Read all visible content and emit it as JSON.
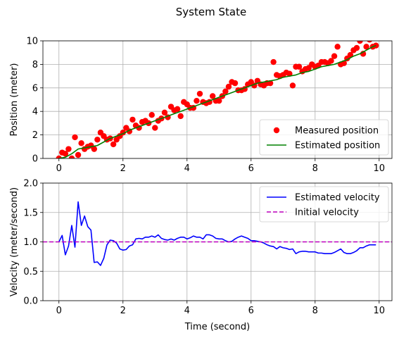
{
  "figure": {
    "title": "System State"
  },
  "chart_data": [
    {
      "type": "scatter+line",
      "xlabel": "",
      "ylabel": "Position (meter)",
      "xlim": [
        -0.5,
        10.4
      ],
      "ylim": [
        0,
        10
      ],
      "xticks": [
        0,
        2,
        4,
        6,
        8,
        10
      ],
      "yticks": [
        0,
        2,
        4,
        6,
        8,
        10
      ],
      "grid": true,
      "legend_position": "lower-right",
      "series": [
        {
          "name": "Measured position",
          "style": "markers",
          "color": "#ff0000",
          "x": [
            0.0,
            0.1,
            0.2,
            0.3,
            0.4,
            0.5,
            0.6,
            0.7,
            0.8,
            0.9,
            1.0,
            1.1,
            1.2,
            1.3,
            1.4,
            1.5,
            1.6,
            1.7,
            1.8,
            1.9,
            2.0,
            2.1,
            2.2,
            2.3,
            2.4,
            2.5,
            2.6,
            2.7,
            2.8,
            2.9,
            3.0,
            3.1,
            3.2,
            3.3,
            3.4,
            3.5,
            3.6,
            3.7,
            3.8,
            3.9,
            4.0,
            4.1,
            4.2,
            4.3,
            4.4,
            4.5,
            4.6,
            4.7,
            4.8,
            4.9,
            5.0,
            5.1,
            5.2,
            5.3,
            5.4,
            5.5,
            5.6,
            5.7,
            5.8,
            5.9,
            6.0,
            6.1,
            6.2,
            6.3,
            6.4,
            6.5,
            6.6,
            6.7,
            6.8,
            6.9,
            7.0,
            7.1,
            7.2,
            7.3,
            7.4,
            7.5,
            7.6,
            7.7,
            7.8,
            7.9,
            8.0,
            8.1,
            8.2,
            8.3,
            8.4,
            8.5,
            8.6,
            8.7,
            8.8,
            8.9,
            9.0,
            9.1,
            9.2,
            9.3,
            9.4,
            9.5,
            9.6,
            9.7,
            9.8,
            9.9
          ],
          "y": [
            0.0,
            0.5,
            0.4,
            0.8,
            0.0,
            1.8,
            0.3,
            1.3,
            0.8,
            1.0,
            1.1,
            0.8,
            1.6,
            2.2,
            1.9,
            1.6,
            1.7,
            1.2,
            1.6,
            1.9,
            2.2,
            2.6,
            2.3,
            3.3,
            2.8,
            2.6,
            3.1,
            3.2,
            3.0,
            3.7,
            2.6,
            3.2,
            3.4,
            3.9,
            3.5,
            4.4,
            4.1,
            4.2,
            3.6,
            4.8,
            4.6,
            4.3,
            4.3,
            4.9,
            5.5,
            4.8,
            4.7,
            4.8,
            5.3,
            4.9,
            4.9,
            5.3,
            5.7,
            6.1,
            6.5,
            6.4,
            5.8,
            5.8,
            5.9,
            6.3,
            6.5,
            6.2,
            6.6,
            6.3,
            6.2,
            6.4,
            6.4,
            8.2,
            7.1,
            7.0,
            7.1,
            7.3,
            7.2,
            6.2,
            7.8,
            7.8,
            7.4,
            7.6,
            7.7,
            8.0,
            7.8,
            7.9,
            8.2,
            8.2,
            8.1,
            8.3,
            8.7,
            9.5,
            8.0,
            8.1,
            8.5,
            8.8,
            9.2,
            9.4,
            10.0,
            8.9,
            9.5,
            10.1,
            9.5,
            9.6
          ]
        },
        {
          "name": "Estimated position",
          "style": "line",
          "color": "#008000",
          "x": [
            0,
            0.2,
            0.4,
            0.6,
            0.8,
            1.0,
            1.2,
            1.4,
            1.6,
            1.8,
            2.0,
            2.2,
            2.4,
            2.6,
            2.8,
            3.0,
            3.2,
            3.4,
            3.6,
            3.8,
            4.0,
            4.2,
            4.4,
            4.6,
            4.8,
            5.0,
            5.2,
            5.4,
            5.6,
            5.8,
            6.0,
            6.2,
            6.4,
            6.6,
            6.8,
            7.0,
            7.2,
            7.4,
            7.6,
            7.8,
            8.0,
            8.2,
            8.4,
            8.6,
            8.8,
            9.0,
            9.2,
            9.4,
            9.6,
            9.8,
            9.9
          ],
          "y": [
            0.0,
            0.1,
            0.4,
            0.8,
            0.9,
            1.0,
            1.1,
            1.4,
            1.7,
            1.9,
            2.1,
            2.4,
            2.6,
            2.8,
            3.0,
            3.2,
            3.4,
            3.6,
            3.8,
            4.0,
            4.2,
            4.4,
            4.6,
            4.8,
            5.0,
            5.2,
            5.4,
            5.6,
            5.8,
            6.0,
            6.2,
            6.4,
            6.5,
            6.6,
            6.7,
            6.9,
            7.0,
            7.1,
            7.3,
            7.4,
            7.6,
            7.8,
            7.9,
            8.0,
            8.2,
            8.4,
            8.7,
            8.9,
            9.2,
            9.5,
            9.6
          ]
        }
      ]
    },
    {
      "type": "line",
      "xlabel": "Time (second)",
      "ylabel": "Velocity (meter/second)",
      "xlim": [
        -0.5,
        10.4
      ],
      "ylim": [
        0,
        2
      ],
      "xticks": [
        0,
        2,
        4,
        6,
        8,
        10
      ],
      "yticks": [
        0.0,
        0.5,
        1.0,
        1.5,
        2.0
      ],
      "grid": true,
      "legend_position": "upper-right",
      "series": [
        {
          "name": "Estimated velocity",
          "style": "line",
          "color": "#0000ff",
          "x": [
            0.0,
            0.1,
            0.2,
            0.3,
            0.4,
            0.5,
            0.6,
            0.7,
            0.8,
            0.9,
            1.0,
            1.1,
            1.2,
            1.3,
            1.4,
            1.5,
            1.6,
            1.7,
            1.8,
            1.9,
            2.0,
            2.1,
            2.2,
            2.3,
            2.4,
            2.5,
            2.6,
            2.7,
            2.8,
            2.9,
            3.0,
            3.1,
            3.2,
            3.3,
            3.4,
            3.5,
            3.6,
            3.7,
            3.8,
            3.9,
            4.0,
            4.1,
            4.2,
            4.3,
            4.4,
            4.5,
            4.6,
            4.7,
            4.8,
            4.9,
            5.0,
            5.1,
            5.2,
            5.3,
            5.4,
            5.5,
            5.6,
            5.7,
            5.8,
            5.9,
            6.0,
            6.1,
            6.2,
            6.3,
            6.4,
            6.5,
            6.6,
            6.7,
            6.8,
            6.9,
            7.0,
            7.1,
            7.2,
            7.3,
            7.4,
            7.5,
            7.6,
            7.7,
            7.8,
            7.9,
            8.0,
            8.1,
            8.2,
            8.3,
            8.4,
            8.5,
            8.6,
            8.7,
            8.8,
            8.9,
            9.0,
            9.1,
            9.2,
            9.3,
            9.4,
            9.5,
            9.6,
            9.7,
            9.8,
            9.9
          ],
          "y": [
            1.0,
            1.11,
            0.78,
            0.93,
            1.28,
            0.91,
            1.68,
            1.28,
            1.44,
            1.26,
            1.2,
            0.65,
            0.66,
            0.6,
            0.72,
            0.95,
            1.03,
            1.02,
            0.98,
            0.88,
            0.86,
            0.87,
            0.93,
            0.95,
            1.05,
            1.06,
            1.05,
            1.08,
            1.08,
            1.1,
            1.08,
            1.12,
            1.06,
            1.04,
            1.03,
            1.05,
            1.03,
            1.06,
            1.08,
            1.08,
            1.05,
            1.07,
            1.1,
            1.08,
            1.08,
            1.05,
            1.12,
            1.12,
            1.1,
            1.06,
            1.05,
            1.05,
            1.02,
            1.0,
            1.01,
            1.05,
            1.08,
            1.1,
            1.08,
            1.06,
            1.02,
            1.02,
            1.01,
            1.0,
            0.98,
            0.95,
            0.93,
            0.92,
            0.88,
            0.92,
            0.9,
            0.89,
            0.87,
            0.88,
            0.8,
            0.83,
            0.84,
            0.84,
            0.83,
            0.83,
            0.83,
            0.81,
            0.81,
            0.8,
            0.8,
            0.8,
            0.82,
            0.85,
            0.88,
            0.82,
            0.8,
            0.8,
            0.82,
            0.85,
            0.9,
            0.9,
            0.93,
            0.95,
            0.95,
            0.95
          ]
        },
        {
          "name": "Initial velocity",
          "style": "dashed",
          "color": "#bf00bf",
          "constant_y": 1.0
        }
      ]
    }
  ]
}
